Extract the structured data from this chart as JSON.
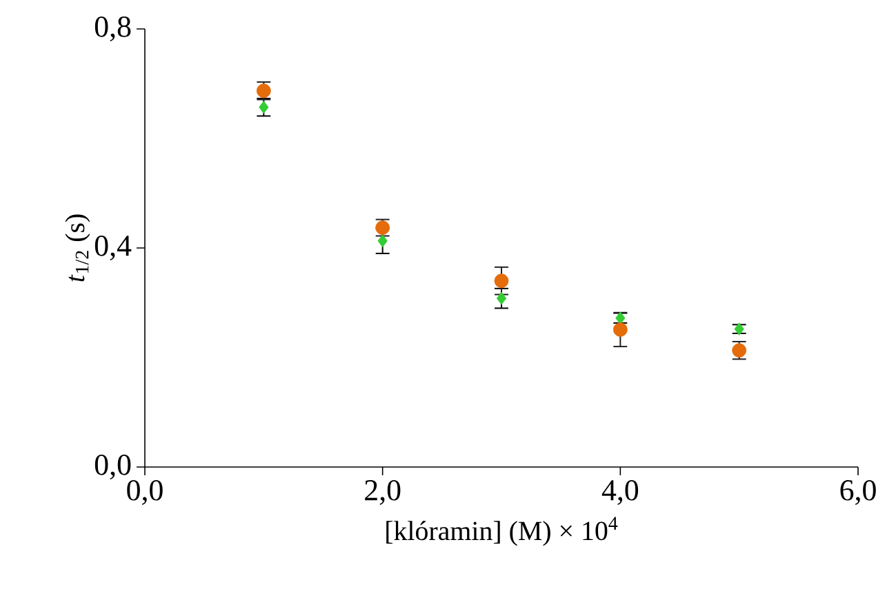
{
  "chart_data": {
    "type": "scatter",
    "xlabel": "[klóramin] (M) × 10$^{4}$",
    "ylabel": "*t*$_{1/2}$ (s)",
    "x": [
      1,
      2,
      3,
      4,
      5
    ],
    "series": [
      {
        "color": "#33cc33",
        "marker": "diamond",
        "values": [
          0.657,
          0.413,
          0.308,
          0.272,
          0.252
        ],
        "errors": [
          0.016,
          0.023,
          0.018,
          0.009,
          0.008
        ]
      },
      {
        "color": "#e46c0a",
        "marker": "circle",
        "values": [
          0.687,
          0.437,
          0.34,
          0.251,
          0.213
        ],
        "errors": [
          0.016,
          0.015,
          0.025,
          0.031,
          0.016
        ]
      }
    ],
    "xlim": [
      0,
      6
    ],
    "ylim": [
      0,
      0.8
    ],
    "xticks": [
      {
        "value": 0,
        "label": "0,0"
      },
      {
        "value": 2,
        "label": "2,0"
      },
      {
        "value": 4,
        "label": "4,0"
      },
      {
        "value": 6,
        "label": "6,0"
      }
    ],
    "yticks": [
      {
        "value": 0,
        "label": "0,0"
      },
      {
        "value": 0.4,
        "label": "0,4"
      },
      {
        "value": 0.8,
        "label": "0,8"
      }
    ],
    "grid": false
  }
}
